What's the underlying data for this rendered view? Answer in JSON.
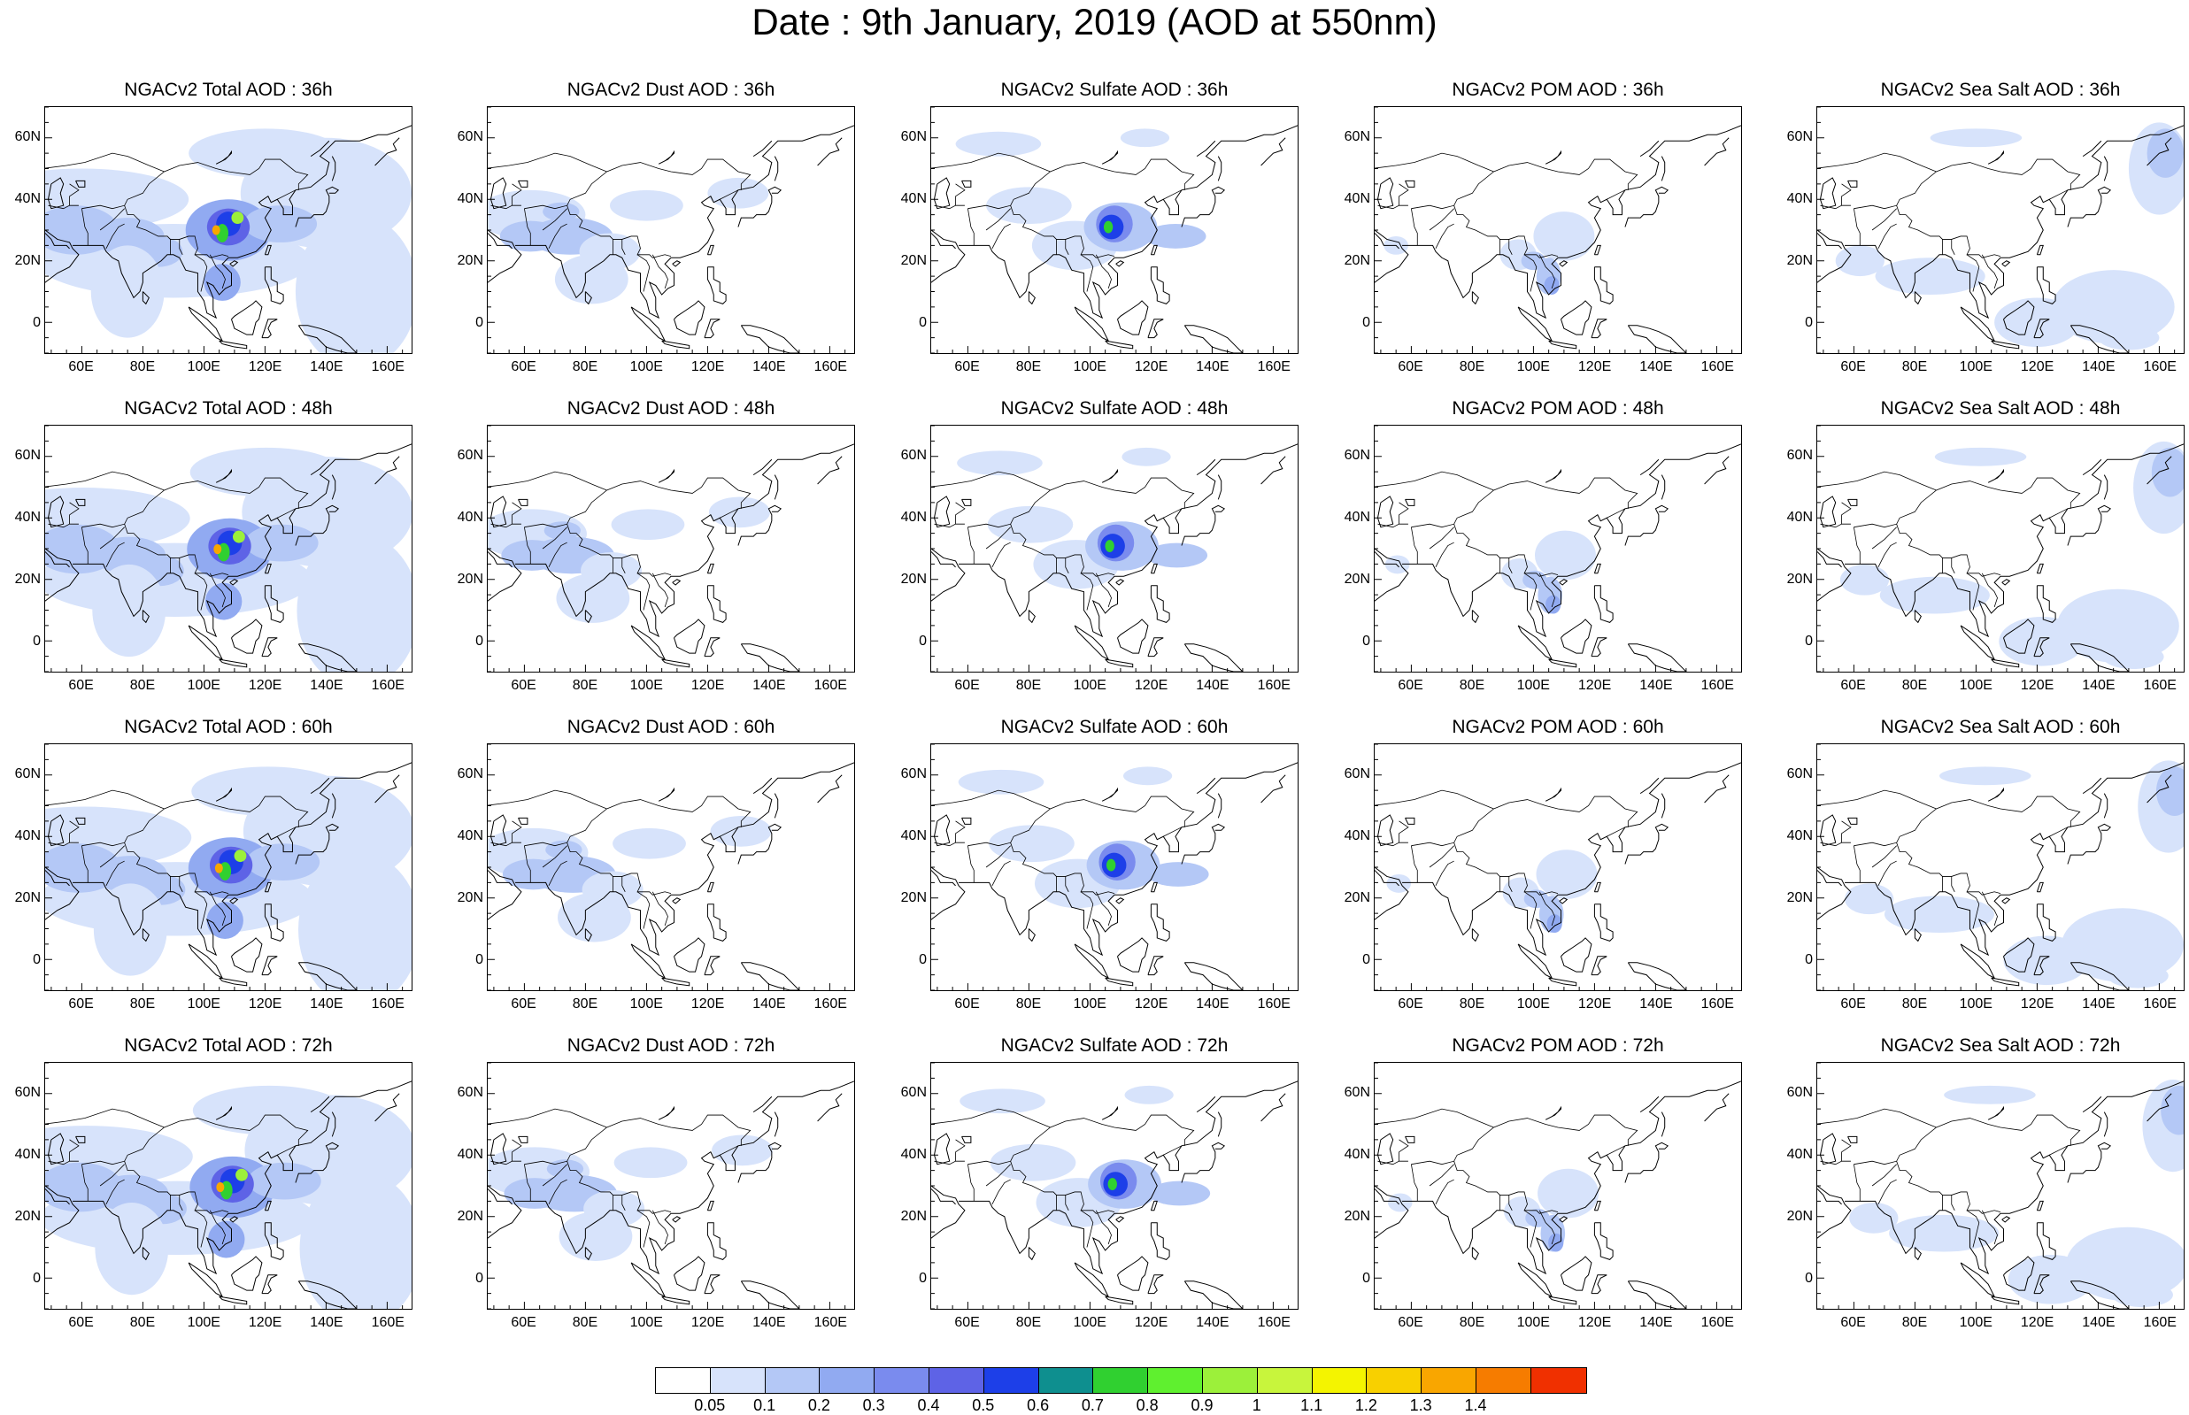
{
  "title": "Date : 9th January, 2019 (AOD at 550nm)",
  "columns": [
    {
      "key": "total",
      "label": "NGACv2 Total AOD",
      "hotspot": true
    },
    {
      "key": "dust",
      "label": "NGACv2 Dust AOD",
      "hotspot": false
    },
    {
      "key": "sulfate",
      "label": "NGACv2 Sulfate AOD",
      "hotspot": true
    },
    {
      "key": "pom",
      "label": "NGACv2 POM AOD",
      "hotspot": false
    },
    {
      "key": "seasalt",
      "label": "NGACv2 Sea Salt AOD",
      "hotspot": false
    }
  ],
  "panels": [
    [
      "NGACv2 Total AOD : 36h",
      "NGACv2 Dust AOD : 36h",
      "NGACv2 Sulfate AOD : 36h",
      "NGACv2 POM AOD : 36h",
      "NGACv2 Sea Salt AOD : 36h"
    ],
    [
      "NGACv2 Total AOD : 48h",
      "NGACv2 Dust AOD : 48h",
      "NGACv2 Sulfate AOD : 48h",
      "NGACv2 POM AOD : 48h",
      "NGACv2 Sea Salt AOD : 48h"
    ],
    [
      "NGACv2 Total AOD : 60h",
      "NGACv2 Dust AOD : 60h",
      "NGACv2 Sulfate AOD : 60h",
      "NGACv2 POM AOD : 60h",
      "NGACv2 Sea Salt AOD : 60h"
    ],
    [
      "NGACv2 Total AOD : 72h",
      "NGACv2 Dust AOD : 72h",
      "NGACv2 Sulfate AOD : 72h",
      "NGACv2 POM AOD : 72h",
      "NGACv2 Sea Salt  AOD : 72h"
    ]
  ],
  "x_ticks": [
    "60E",
    "80E",
    "100E",
    "120E",
    "140E",
    "160E"
  ],
  "y_ticks": [
    "60N",
    "40N",
    "20N",
    "0"
  ],
  "map_extent": {
    "lon": [
      48,
      168
    ],
    "lat": [
      -10,
      70
    ]
  },
  "colorbar": {
    "colors": [
      "#ffffff",
      "#d7e3fb",
      "#b4c8f6",
      "#91aaf1",
      "#7a8bee",
      "#5e63e6",
      "#1d3fe8",
      "#0e8f8f",
      "#30d030",
      "#5ff02f",
      "#9cf03a",
      "#c8f53c",
      "#f4f400",
      "#f8d000",
      "#f9a600",
      "#f67c00",
      "#f03000"
    ],
    "labels": [
      "0.05",
      "0.1",
      "0.2",
      "0.3",
      "0.4",
      "0.5",
      "0.6",
      "0.7",
      "0.8",
      "0.9",
      "1",
      "1.1",
      "1.2",
      "1.3",
      "1.4"
    ]
  }
}
